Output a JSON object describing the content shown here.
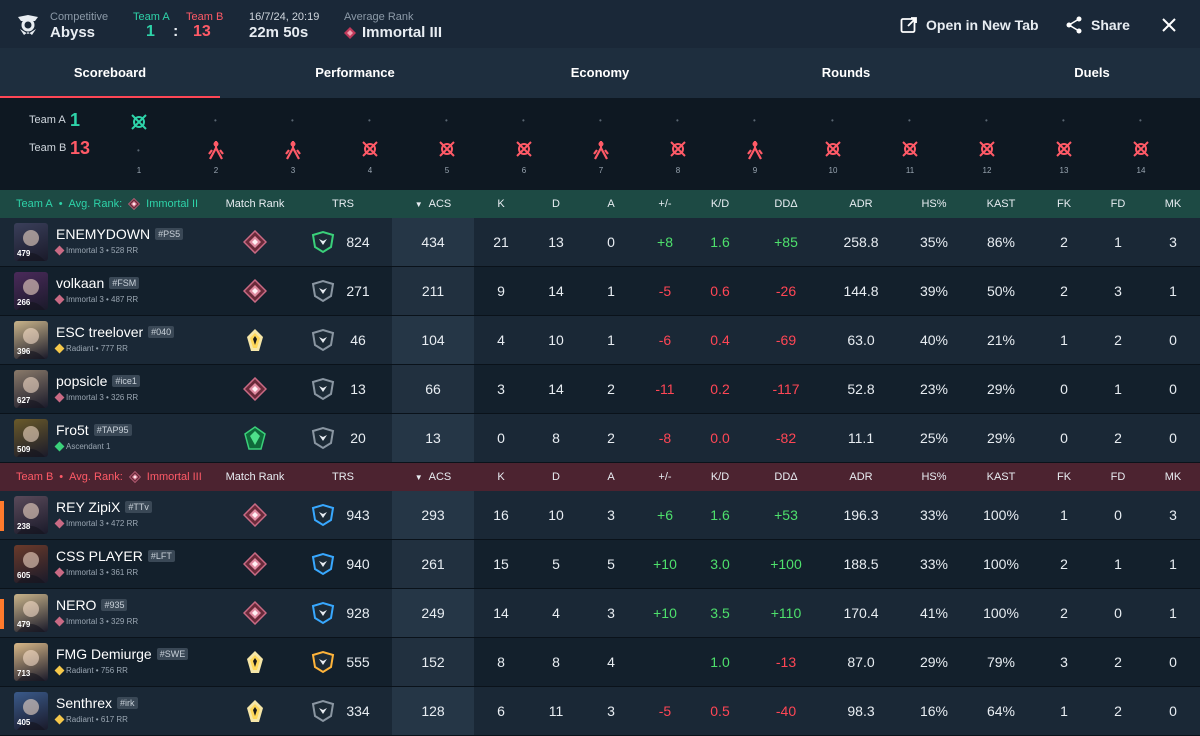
{
  "header": {
    "mode": "Competitive",
    "map": "Abyss",
    "team_a_label": "Team A",
    "team_b_label": "Team B",
    "score_a": "1",
    "score_sep": ":",
    "score_b": "13",
    "date": "16/7/24, 20:19",
    "duration": "22m 50s",
    "avg_rank_label": "Average Rank",
    "avg_rank": "Immortal III",
    "open_tab": "Open in New Tab",
    "share": "Share"
  },
  "tabs": [
    "Scoreboard",
    "Performance",
    "Economy",
    "Rounds",
    "Duels"
  ],
  "rounds": {
    "team_a_label": "Team A",
    "team_a_score": "1",
    "team_b_label": "Team B",
    "team_b_score": "13",
    "numbers": [
      "1",
      "2",
      "3",
      "4",
      "5",
      "6",
      "7",
      "8",
      "9",
      "10",
      "11",
      "12",
      "13",
      "14"
    ],
    "winners": [
      "A",
      "B",
      "B",
      "B",
      "B",
      "B",
      "B",
      "B",
      "B",
      "B",
      "B",
      "B",
      "B",
      "B"
    ],
    "icons": [
      "elim",
      "defuse",
      "defuse",
      "elim",
      "elim",
      "elim",
      "defuse",
      "elim",
      "defuse",
      "elim",
      "elim",
      "elim",
      "elim",
      "elim"
    ]
  },
  "columns": {
    "match_rank": "Match Rank",
    "trs": "TRS",
    "acs": "ACS",
    "k": "K",
    "d": "D",
    "a": "A",
    "pm": "+/-",
    "kd": "K/D",
    "dd": "DDΔ",
    "adr": "ADR",
    "hs": "HS%",
    "kast": "KAST",
    "fk": "FK",
    "fd": "FD",
    "mk": "MK"
  },
  "team_a": {
    "name": "Team A",
    "sep": "•",
    "avg_rank": "Avg. Rank:",
    "avg_rank_value": "Immortal II",
    "players": [
      {
        "name": "ENEMYDOWN",
        "tag": "#PS5",
        "rank": "Immortal 3 • 528 RR",
        "level": "479",
        "trs": "824",
        "acs": "434",
        "k": "21",
        "d": "13",
        "a": "0",
        "pm": "+8",
        "kd": "1.6",
        "dd": "+85",
        "adr": "258.8",
        "hs": "35%",
        "kast": "86%",
        "fk": "2",
        "fd": "1",
        "mk": "3",
        "mr": "immortal",
        "tr": "green",
        "avatar": "#3a3f5a"
      },
      {
        "name": "volkaan",
        "tag": "#FSM",
        "rank": "Immortal 3 • 487 RR",
        "level": "266",
        "trs": "271",
        "acs": "211",
        "k": "9",
        "d": "14",
        "a": "1",
        "pm": "-5",
        "kd": "0.6",
        "dd": "-26",
        "adr": "144.8",
        "hs": "39%",
        "kast": "50%",
        "fk": "2",
        "fd": "3",
        "mk": "1",
        "mr": "immortal",
        "tr": "gray",
        "avatar": "#4a2a5a"
      },
      {
        "name": "ESC treelover",
        "tag": "#040",
        "rank": "Radiant • 777 RR",
        "level": "396",
        "trs": "46",
        "acs": "104",
        "k": "4",
        "d": "10",
        "a": "1",
        "pm": "-6",
        "kd": "0.4",
        "dd": "-69",
        "adr": "63.0",
        "hs": "40%",
        "kast": "21%",
        "fk": "1",
        "fd": "2",
        "mk": "0",
        "mr": "radiant",
        "tr": "gray",
        "avatar": "#c9b48a"
      },
      {
        "name": "popsicle",
        "tag": "#ice1",
        "rank": "Immortal 3 • 326 RR",
        "level": "627",
        "trs": "13",
        "acs": "66",
        "k": "3",
        "d": "14",
        "a": "2",
        "pm": "-11",
        "kd": "0.2",
        "dd": "-117",
        "adr": "52.8",
        "hs": "23%",
        "kast": "29%",
        "fk": "0",
        "fd": "1",
        "mk": "0",
        "mr": "immortal",
        "tr": "gray",
        "avatar": "#8a7a6a"
      },
      {
        "name": "Fro5t",
        "tag": "#TAP95",
        "rank": "Ascendant 1",
        "level": "509",
        "trs": "20",
        "acs": "13",
        "k": "0",
        "d": "8",
        "a": "2",
        "pm": "-8",
        "kd": "0.0",
        "dd": "-82",
        "adr": "11.1",
        "hs": "25%",
        "kast": "29%",
        "fk": "0",
        "fd": "2",
        "mk": "0",
        "mr": "ascendant",
        "tr": "gray",
        "avatar": "#6a5a2a"
      }
    ]
  },
  "team_b": {
    "name": "Team B",
    "sep": "•",
    "avg_rank": "Avg. Rank:",
    "avg_rank_value": "Immortal III",
    "players": [
      {
        "name": "REY ZipiX",
        "tag": "#TTv",
        "rank": "Immortal 3 • 472 RR",
        "level": "238",
        "trs": "943",
        "acs": "293",
        "k": "16",
        "d": "10",
        "a": "3",
        "pm": "+6",
        "kd": "1.6",
        "dd": "+53",
        "adr": "196.3",
        "hs": "33%",
        "kast": "100%",
        "fk": "1",
        "fd": "0",
        "mk": "3",
        "mr": "immortal",
        "tr": "blue",
        "avatar": "#5a4a5a",
        "bar": true
      },
      {
        "name": "CSS PLAYER",
        "tag": "#LFT",
        "rank": "Immortal 3 • 361 RR",
        "level": "605",
        "trs": "940",
        "acs": "261",
        "k": "15",
        "d": "5",
        "a": "5",
        "pm": "+10",
        "kd": "3.0",
        "dd": "+100",
        "adr": "188.5",
        "hs": "33%",
        "kast": "100%",
        "fk": "2",
        "fd": "1",
        "mk": "1",
        "mr": "immortal",
        "tr": "blue",
        "avatar": "#6a3a2a",
        "bar": false
      },
      {
        "name": "NERO",
        "tag": "#935",
        "rank": "Immortal 3 • 329 RR",
        "level": "479",
        "trs": "928",
        "acs": "249",
        "k": "14",
        "d": "4",
        "a": "3",
        "pm": "+10",
        "kd": "3.5",
        "dd": "+110",
        "adr": "170.4",
        "hs": "41%",
        "kast": "100%",
        "fk": "2",
        "fd": "0",
        "mk": "1",
        "mr": "immortal",
        "tr": "blue",
        "avatar": "#c9b48a",
        "bar": true
      },
      {
        "name": "FMG Demiurge",
        "tag": "#SWE",
        "rank": "Radiant • 756 RR",
        "level": "713",
        "trs": "555",
        "acs": "152",
        "k": "8",
        "d": "8",
        "a": "4",
        "pm": "",
        "kd": "1.0",
        "dd": "-13",
        "adr": "87.0",
        "hs": "29%",
        "kast": "79%",
        "fk": "3",
        "fd": "2",
        "mk": "0",
        "mr": "radiant",
        "tr": "gold",
        "avatar": "#d8b888",
        "bar": false
      },
      {
        "name": "Senthrex",
        "tag": "#irk",
        "rank": "Radiant • 617 RR",
        "level": "405",
        "trs": "334",
        "acs": "128",
        "k": "6",
        "d": "11",
        "a": "3",
        "pm": "-5",
        "kd": "0.5",
        "dd": "-40",
        "adr": "98.3",
        "hs": "16%",
        "kast": "64%",
        "fk": "1",
        "fd": "2",
        "mk": "0",
        "mr": "radiant",
        "tr": "gray",
        "avatar": "#3a5a8a",
        "bar": false
      }
    ]
  },
  "colors": {
    "teamA": "#2ed3a9",
    "teamB": "#ff5a67",
    "accent": "#ff4655",
    "positive": "#4ee06c",
    "negative": "#ff4655"
  }
}
